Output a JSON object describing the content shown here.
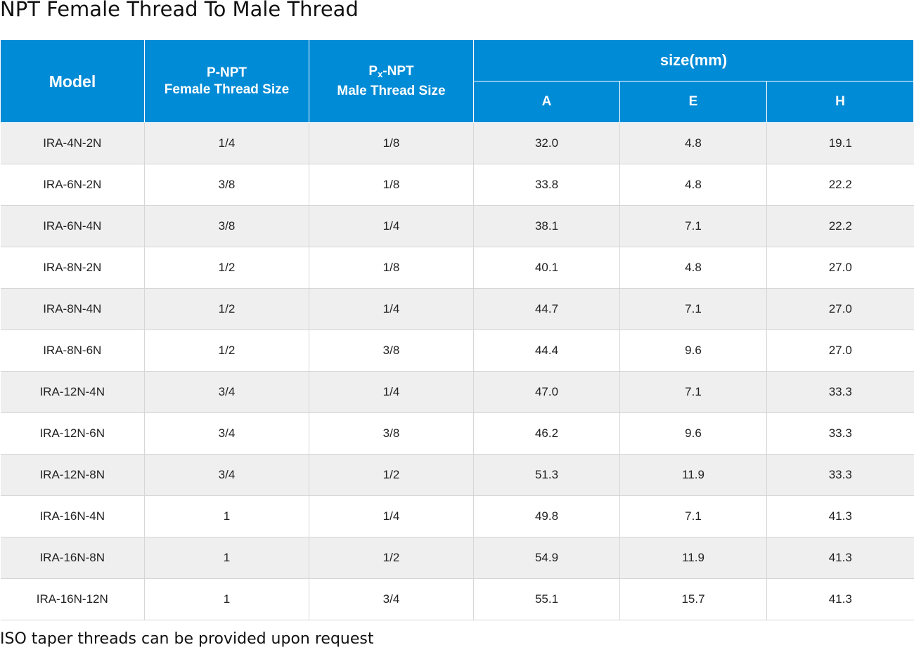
{
  "title": "NPT Female Thread To Male Thread",
  "header": {
    "model": "Model",
    "p_npt_line1": "P-NPT",
    "p_npt_line2": "Female Thread Size",
    "px_npt_prefix": "P",
    "px_npt_sub": "x",
    "px_npt_suffix": "-NPT",
    "px_npt_line2": "Male Thread Size",
    "size": "size(mm)",
    "col_a": "A",
    "col_e": "E",
    "col_h": "H"
  },
  "rows": [
    {
      "model": "IRA-4N-2N",
      "p": "1/4",
      "px": "1/8",
      "a": "32.0",
      "e": "4.8",
      "h": "19.1"
    },
    {
      "model": "IRA-6N-2N",
      "p": "3/8",
      "px": "1/8",
      "a": "33.8",
      "e": "4.8",
      "h": "22.2"
    },
    {
      "model": "IRA-6N-4N",
      "p": "3/8",
      "px": "1/4",
      "a": "38.1",
      "e": "7.1",
      "h": "22.2"
    },
    {
      "model": "IRA-8N-2N",
      "p": "1/2",
      "px": "1/8",
      "a": "40.1",
      "e": "4.8",
      "h": "27.0"
    },
    {
      "model": "IRA-8N-4N",
      "p": "1/2",
      "px": "1/4",
      "a": "44.7",
      "e": "7.1",
      "h": "27.0"
    },
    {
      "model": "IRA-8N-6N",
      "p": "1/2",
      "px": "3/8",
      "a": "44.4",
      "e": "9.6",
      "h": "27.0"
    },
    {
      "model": "IRA-12N-4N",
      "p": "3/4",
      "px": "1/4",
      "a": "47.0",
      "e": "7.1",
      "h": "33.3"
    },
    {
      "model": "IRA-12N-6N",
      "p": "3/4",
      "px": "3/8",
      "a": "46.2",
      "e": "9.6",
      "h": "33.3"
    },
    {
      "model": "IRA-12N-8N",
      "p": "3/4",
      "px": "1/2",
      "a": "51.3",
      "e": "11.9",
      "h": "33.3"
    },
    {
      "model": "IRA-16N-4N",
      "p": "1",
      "px": "1/4",
      "a": "49.8",
      "e": "7.1",
      "h": "41.3"
    },
    {
      "model": "IRA-16N-8N",
      "p": "1",
      "px": "1/2",
      "a": "54.9",
      "e": "11.9",
      "h": "41.3"
    },
    {
      "model": "IRA-16N-12N",
      "p": "1",
      "px": "3/4",
      "a": "55.1",
      "e": "15.7",
      "h": "41.3"
    }
  ],
  "footnote": "ISO taper threads can be provided upon request",
  "colors": {
    "header_bg": "#008bd6",
    "row_alt_bg": "#efeff0"
  }
}
